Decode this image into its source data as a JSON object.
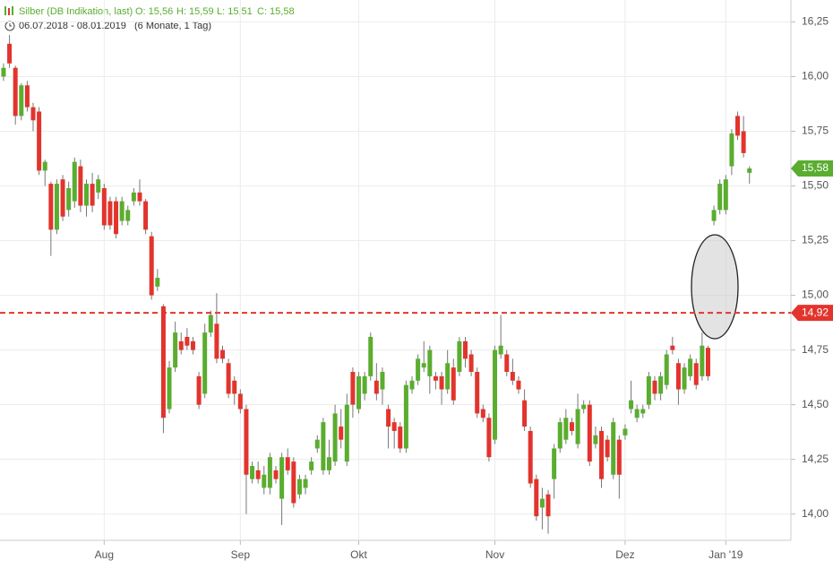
{
  "header": {
    "title": "Silber (DB Indikation, last)",
    "ohlc": [
      "O: 15,56",
      "H: 15,59",
      "L: 15,51",
      "C: 15,58"
    ],
    "range": "06.07.2018 - 08.01.2019",
    "period": "(6 Monate, 1 Tag)"
  },
  "chart_data": {
    "type": "candlestick",
    "open": [
      16.0,
      16.15,
      16.04,
      15.82,
      15.96,
      15.86,
      15.84,
      15.57,
      15.51,
      15.3,
      15.53,
      15.39,
      15.43,
      15.59,
      15.41,
      15.51,
      15.47,
      15.49,
      15.43,
      15.43,
      15.34,
      15.34,
      15.43,
      15.47,
      15.43,
      15.27,
      15.04,
      14.95,
      14.48,
      14.67,
      14.79,
      14.81,
      14.79,
      14.63,
      14.55,
      14.83,
      14.87,
      14.75,
      14.69,
      14.61,
      14.55,
      14.48,
      14.16,
      14.2,
      14.12,
      14.12,
      14.2,
      14.07,
      14.26,
      14.24,
      14.09,
      14.12,
      14.2,
      14.3,
      14.2,
      14.2,
      14.24,
      14.4,
      14.24,
      14.65,
      14.48,
      14.55,
      14.63,
      14.61,
      14.57,
      14.48,
      14.42,
      14.4,
      14.3,
      14.57,
      14.61,
      14.67,
      14.63,
      14.63,
      14.63,
      14.57,
      14.67,
      14.65,
      14.79,
      14.73,
      14.65,
      14.48,
      14.44,
      14.34,
      14.73,
      14.73,
      14.65,
      14.61,
      14.52,
      14.38,
      14.16,
      14.03,
      14.09,
      14.16,
      14.3,
      14.34,
      14.42,
      14.32,
      14.48,
      14.5,
      14.32,
      14.38,
      14.34,
      14.18,
      14.34,
      14.36,
      14.48,
      14.44,
      14.46,
      14.5,
      14.61,
      14.55,
      14.59,
      14.77,
      14.69,
      14.57,
      14.63,
      14.69,
      14.63,
      14.76,
      15.34,
      15.39,
      15.39,
      15.59,
      15.82,
      15.75,
      15.56
    ],
    "high": [
      16.06,
      16.19,
      16.05,
      15.97,
      15.98,
      15.88,
      15.86,
      15.62,
      15.52,
      15.53,
      15.55,
      15.52,
      15.63,
      15.62,
      15.53,
      15.56,
      15.55,
      15.51,
      15.45,
      15.45,
      15.45,
      15.41,
      15.49,
      15.53,
      15.44,
      15.29,
      15.12,
      14.96,
      14.7,
      14.88,
      14.83,
      14.85,
      14.81,
      14.65,
      14.87,
      14.93,
      15.01,
      14.77,
      14.71,
      14.63,
      14.57,
      14.5,
      14.24,
      14.24,
      14.22,
      14.28,
      14.22,
      14.28,
      14.3,
      14.26,
      14.18,
      14.18,
      14.26,
      14.36,
      14.44,
      14.34,
      14.5,
      14.48,
      14.55,
      14.67,
      14.65,
      14.65,
      14.83,
      14.69,
      14.67,
      14.5,
      14.44,
      14.42,
      14.61,
      14.63,
      14.73,
      14.79,
      14.77,
      14.65,
      14.65,
      14.75,
      14.71,
      14.81,
      14.81,
      14.75,
      14.67,
      14.5,
      14.46,
      14.77,
      14.91,
      14.75,
      14.71,
      14.63,
      14.57,
      14.4,
      14.18,
      14.12,
      14.11,
      14.32,
      14.44,
      14.48,
      14.44,
      14.55,
      14.52,
      14.52,
      14.4,
      14.4,
      14.36,
      14.44,
      14.36,
      14.41,
      14.61,
      14.5,
      14.5,
      14.65,
      14.63,
      14.65,
      14.75,
      14.81,
      14.71,
      14.69,
      14.73,
      14.71,
      14.83,
      14.77,
      15.41,
      15.53,
      15.55,
      15.76,
      15.84,
      15.82,
      15.59
    ],
    "low": [
      15.98,
      16.04,
      15.78,
      15.8,
      15.84,
      15.75,
      15.55,
      15.5,
      15.18,
      15.28,
      15.34,
      15.36,
      15.4,
      15.38,
      15.36,
      15.38,
      15.44,
      15.3,
      15.3,
      15.26,
      15.32,
      15.32,
      15.41,
      15.41,
      15.28,
      14.98,
      15.02,
      14.37,
      14.46,
      14.65,
      14.73,
      14.75,
      14.73,
      14.48,
      14.53,
      14.81,
      14.69,
      14.69,
      14.53,
      14.5,
      14.46,
      14.0,
      14.14,
      14.14,
      14.09,
      14.09,
      14.14,
      13.95,
      14.18,
      14.03,
      14.07,
      14.09,
      14.18,
      14.28,
      14.18,
      14.18,
      14.22,
      14.3,
      14.22,
      14.44,
      14.46,
      14.52,
      14.61,
      14.52,
      14.5,
      14.3,
      14.3,
      14.28,
      14.28,
      14.55,
      14.59,
      14.65,
      14.55,
      14.57,
      14.5,
      14.55,
      14.5,
      14.63,
      14.67,
      14.63,
      14.44,
      14.42,
      14.24,
      14.32,
      14.71,
      14.63,
      14.59,
      14.55,
      14.38,
      14.12,
      13.97,
      13.93,
      13.91,
      14.07,
      14.28,
      14.32,
      14.36,
      14.3,
      14.46,
      14.22,
      14.3,
      14.12,
      14.24,
      14.16,
      14.07,
      14.34,
      14.46,
      14.42,
      14.44,
      14.48,
      14.52,
      14.52,
      14.57,
      14.73,
      14.5,
      14.55,
      14.61,
      14.57,
      14.61,
      14.61,
      15.32,
      15.37,
      15.37,
      15.55,
      15.71,
      15.63,
      15.51
    ],
    "close": [
      16.04,
      16.06,
      15.82,
      15.96,
      15.86,
      15.8,
      15.57,
      15.61,
      15.3,
      15.51,
      15.36,
      15.49,
      15.61,
      15.41,
      15.51,
      15.41,
      15.53,
      15.32,
      15.32,
      15.28,
      15.43,
      15.39,
      15.47,
      15.43,
      15.3,
      15.0,
      15.08,
      14.44,
      14.67,
      14.83,
      14.75,
      14.77,
      14.75,
      14.5,
      14.83,
      14.91,
      14.71,
      14.71,
      14.55,
      14.55,
      14.48,
      14.18,
      14.22,
      14.16,
      14.18,
      14.26,
      14.16,
      14.26,
      14.2,
      14.05,
      14.16,
      14.16,
      14.24,
      14.34,
      14.42,
      14.26,
      14.46,
      14.34,
      14.5,
      14.5,
      14.63,
      14.63,
      14.81,
      14.55,
      14.65,
      14.4,
      14.38,
      14.3,
      14.59,
      14.61,
      14.71,
      14.69,
      14.75,
      14.61,
      14.57,
      14.69,
      14.52,
      14.79,
      14.71,
      14.65,
      14.46,
      14.44,
      14.26,
      14.75,
      14.77,
      14.65,
      14.61,
      14.57,
      14.4,
      14.14,
      13.99,
      14.07,
      13.99,
      14.3,
      14.42,
      14.44,
      14.38,
      14.48,
      14.5,
      14.24,
      14.36,
      14.16,
      14.26,
      14.42,
      14.18,
      14.39,
      14.52,
      14.48,
      14.48,
      14.63,
      14.55,
      14.63,
      14.73,
      14.75,
      14.57,
      14.67,
      14.71,
      14.59,
      14.77,
      14.63,
      15.39,
      15.51,
      15.53,
      15.74,
      15.73,
      15.65,
      15.58
    ],
    "xlim": [
      -0.6,
      133
    ],
    "ylim": [
      13.88,
      16.35
    ],
    "xticks": [
      {
        "value": 17,
        "label": "Aug"
      },
      {
        "value": 40,
        "label": "Sep"
      },
      {
        "value": 60,
        "label": "Okt"
      },
      {
        "value": 83,
        "label": "Nov"
      },
      {
        "value": 105,
        "label": "Dez"
      },
      {
        "value": 122,
        "label": "Jan '19"
      }
    ],
    "yticks": [
      {
        "value": 14.0,
        "label": "14,00"
      },
      {
        "value": 14.25,
        "label": "14,25"
      },
      {
        "value": 14.5,
        "label": "14,50"
      },
      {
        "value": 14.75,
        "label": "14,75"
      },
      {
        "value": 15.0,
        "label": "15,00"
      },
      {
        "value": 15.25,
        "label": "15,25"
      },
      {
        "value": 15.5,
        "label": "15,50"
      },
      {
        "value": 15.75,
        "label": "15,75"
      },
      {
        "value": 16.0,
        "label": "16,00"
      },
      {
        "value": 16.25,
        "label": "16,25"
      }
    ],
    "up_color": "#5aad2f",
    "down_color": "#e2342d",
    "last_price": {
      "value": 15.58,
      "label": "15,58"
    },
    "reference_line": {
      "value": 14.92,
      "label": "14,92"
    },
    "grid": true
  }
}
